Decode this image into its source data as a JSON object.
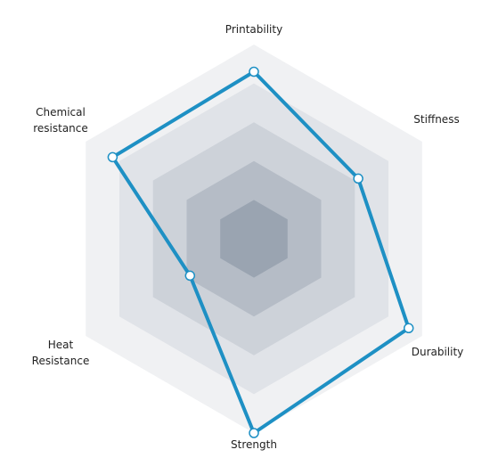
{
  "chart_data": {
    "type": "radar",
    "title": "",
    "axes": [
      "Printability",
      "Stiffness",
      "Durability",
      "Strength",
      "Heat Resistance",
      "Chemical resistance"
    ],
    "axis_label_lines": [
      [
        "Printability"
      ],
      [
        "Stiffness"
      ],
      [
        "Durability"
      ],
      [
        "Strength"
      ],
      [
        "Heat",
        "Resistance"
      ],
      [
        "Chemical",
        "resistance"
      ]
    ],
    "levels": 5,
    "range": [
      0,
      5
    ],
    "series": [
      {
        "values": [
          4.3,
          3.1,
          4.6,
          5.0,
          1.9,
          4.2
        ]
      }
    ],
    "colors": {
      "line": "#1e90c4",
      "marker_fill": "#ffffff",
      "band_fills": [
        "#f0f1f3",
        "#e0e3e8",
        "#cdd2d9",
        "#b5bcc6",
        "#9aa4b1"
      ],
      "label": "#222222"
    }
  }
}
